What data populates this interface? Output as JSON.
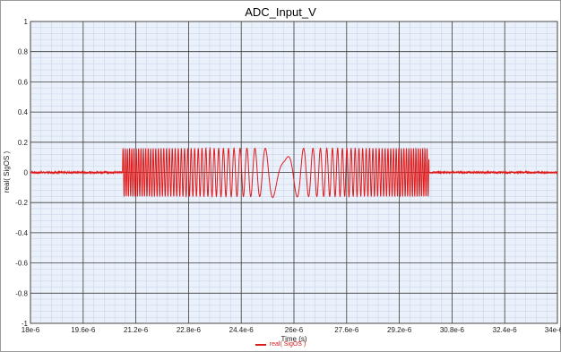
{
  "chart_data": {
    "type": "line",
    "title": "ADC_Input_V",
    "xlabel": "Time (s)",
    "ylabel": "real( SigOS )",
    "xlim": [
      1.8e-05,
      3.4e-05
    ],
    "ylim": [
      -1,
      1
    ],
    "x_ticks": [
      {
        "value": 1.8e-05,
        "label": "18e-6"
      },
      {
        "value": 1.96e-05,
        "label": "19.6e-6"
      },
      {
        "value": 2.12e-05,
        "label": "21.2e-6"
      },
      {
        "value": 2.28e-05,
        "label": "22.8e-6"
      },
      {
        "value": 2.44e-05,
        "label": "24.4e-6"
      },
      {
        "value": 2.6e-05,
        "label": "26e-6"
      },
      {
        "value": 2.76e-05,
        "label": "27.6e-6"
      },
      {
        "value": 2.92e-05,
        "label": "29.2e-6"
      },
      {
        "value": 3.08e-05,
        "label": "30.8e-6"
      },
      {
        "value": 3.24e-05,
        "label": "32.4e-6"
      },
      {
        "value": 3.4e-05,
        "label": "34e-6"
      }
    ],
    "y_ticks": [
      {
        "value": 1,
        "label": "1"
      },
      {
        "value": 0.8,
        "label": "0.8"
      },
      {
        "value": 0.6,
        "label": "0.6"
      },
      {
        "value": 0.4,
        "label": "0.4"
      },
      {
        "value": 0.2,
        "label": "0.2"
      },
      {
        "value": 0,
        "label": "0"
      },
      {
        "value": -0.2,
        "label": "-0.2"
      },
      {
        "value": -0.4,
        "label": "-0.4"
      },
      {
        "value": -0.6,
        "label": "-0.6"
      },
      {
        "value": -0.8,
        "label": "-0.8"
      },
      {
        "value": -1,
        "label": "-1"
      }
    ],
    "grid": true,
    "legend_position": "bottom-center",
    "series": [
      {
        "name": "real( SigOS )",
        "color": "#e01b1b",
        "shape": "symmetric frequency sweep (chirp down then up) with near-zero noise outside burst",
        "burst_start": 2.08e-05,
        "burst_end": 3.01e-05,
        "burst_center": 2.57e-05,
        "amplitude": 0.16,
        "center_dip": -0.12,
        "noise_level": 0.005
      }
    ]
  }
}
